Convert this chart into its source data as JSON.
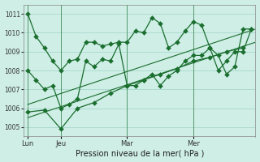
{
  "background_color": "#ceeee6",
  "grid_color": "#a8d8cc",
  "line_color": "#1a6e2e",
  "marker_size": 3,
  "xlabel": "Pression niveau de la mer( hPa )",
  "ylim": [
    1004.5,
    1011.5
  ],
  "yticks": [
    1005,
    1006,
    1007,
    1008,
    1009,
    1010,
    1011
  ],
  "xlim": [
    0,
    168
  ],
  "x_tick_positions": [
    3,
    27,
    75,
    123
  ],
  "x_tick_labels": [
    "Lun",
    "Jeu",
    "Mar",
    "Mer"
  ],
  "vline_positions": [
    3,
    27,
    75,
    123
  ],
  "series1_x": [
    3,
    9,
    15,
    21,
    27,
    33,
    39,
    45,
    51,
    57,
    63,
    69,
    75,
    81,
    87,
    93,
    99,
    105,
    111,
    117,
    123,
    129,
    135,
    141,
    147,
    153,
    159,
    165
  ],
  "series1_y": [
    1011.0,
    1009.8,
    1009.2,
    1008.5,
    1008.0,
    1008.5,
    1008.6,
    1009.5,
    1009.5,
    1009.3,
    1009.4,
    1009.5,
    1009.5,
    1010.1,
    1010.0,
    1010.8,
    1010.5,
    1009.2,
    1009.5,
    1010.1,
    1010.6,
    1010.4,
    1009.2,
    1008.0,
    1008.5,
    1009.0,
    1009.0,
    1010.2
  ],
  "series2_x": [
    3,
    9,
    15,
    21,
    27,
    33,
    39,
    45,
    51,
    57,
    63,
    69,
    75,
    81,
    87,
    93,
    99,
    105,
    111,
    117,
    123,
    129,
    135,
    141,
    147,
    153,
    159,
    165
  ],
  "series2_y": [
    1008.0,
    1007.5,
    1007.0,
    1007.2,
    1006.0,
    1006.2,
    1006.5,
    1008.5,
    1008.2,
    1008.6,
    1008.5,
    1009.4,
    1007.2,
    1007.2,
    1007.5,
    1007.8,
    1007.2,
    1007.7,
    1008.0,
    1008.5,
    1008.8,
    1008.8,
    1009.2,
    1008.8,
    1007.8,
    1008.2,
    1010.2,
    1010.2
  ],
  "series3_x": [
    3,
    15,
    27,
    39,
    51,
    63,
    75,
    87,
    99,
    111,
    123,
    135,
    147,
    159
  ],
  "series3_y": [
    1005.8,
    1005.9,
    1004.9,
    1006.0,
    1006.3,
    1006.8,
    1007.2,
    1007.5,
    1007.8,
    1008.1,
    1008.5,
    1008.7,
    1009.0,
    1009.2
  ],
  "series4_x": [
    3,
    168
  ],
  "series4_y": [
    1005.5,
    1009.5
  ],
  "series5_x": [
    3,
    168
  ],
  "series5_y": [
    1006.2,
    1010.2
  ]
}
